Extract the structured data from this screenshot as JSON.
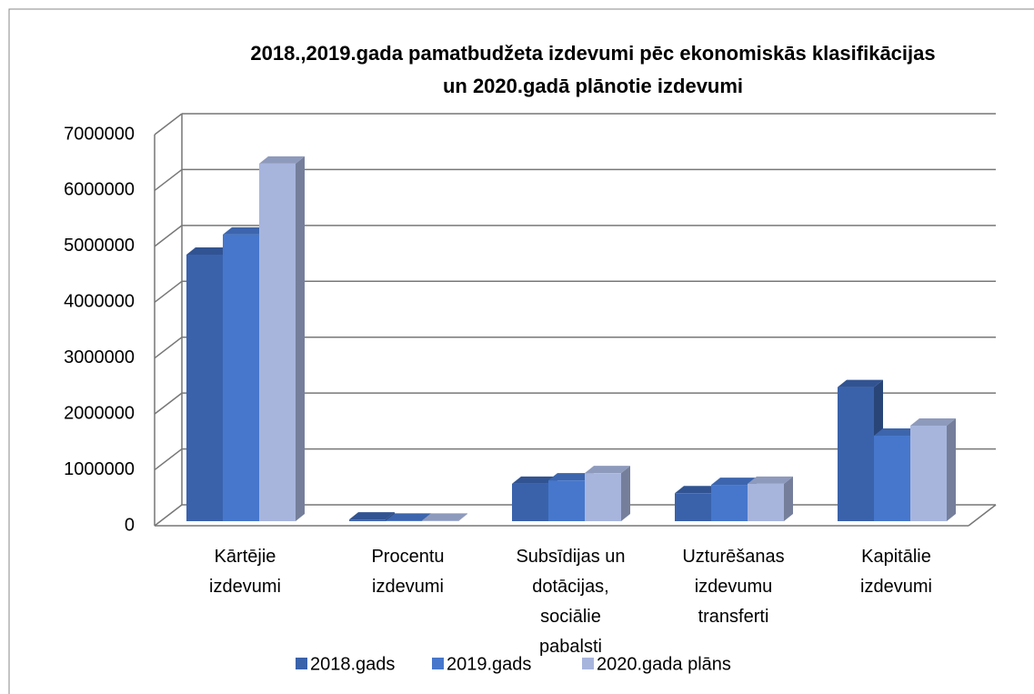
{
  "chart_data": {
    "type": "bar3d",
    "title": "2018.,2019.gada pamatbudžeta izdevumi pēc ekonomiskās klasifikācijas un 2020.gadā plānotie izdevumi",
    "categories": [
      "Kārtējie izdevumi",
      "Procentu izdevumi",
      "Subsīdijas un dotācijas, sociālie pabalsti",
      "Uzturēšanas izdevumu transferti",
      "Kapitālie izdevumi"
    ],
    "series": [
      {
        "name": "2018.gads",
        "color": "#3a62ab",
        "values": [
          4770000,
          30000,
          670000,
          500000,
          2400000
        ]
      },
      {
        "name": "2019.gads",
        "color": "#4677cc",
        "values": [
          5130000,
          10000,
          730000,
          650000,
          1530000
        ]
      },
      {
        "name": "2020.gada plāns",
        "color": "#a7b5dd",
        "values": [
          6400000,
          10000,
          860000,
          670000,
          1710000
        ]
      }
    ],
    "ylim": [
      0,
      7000000
    ],
    "yticks": [
      0,
      1000000,
      2000000,
      3000000,
      4000000,
      5000000,
      6000000,
      7000000
    ],
    "grid": true,
    "legend": "bottom"
  }
}
